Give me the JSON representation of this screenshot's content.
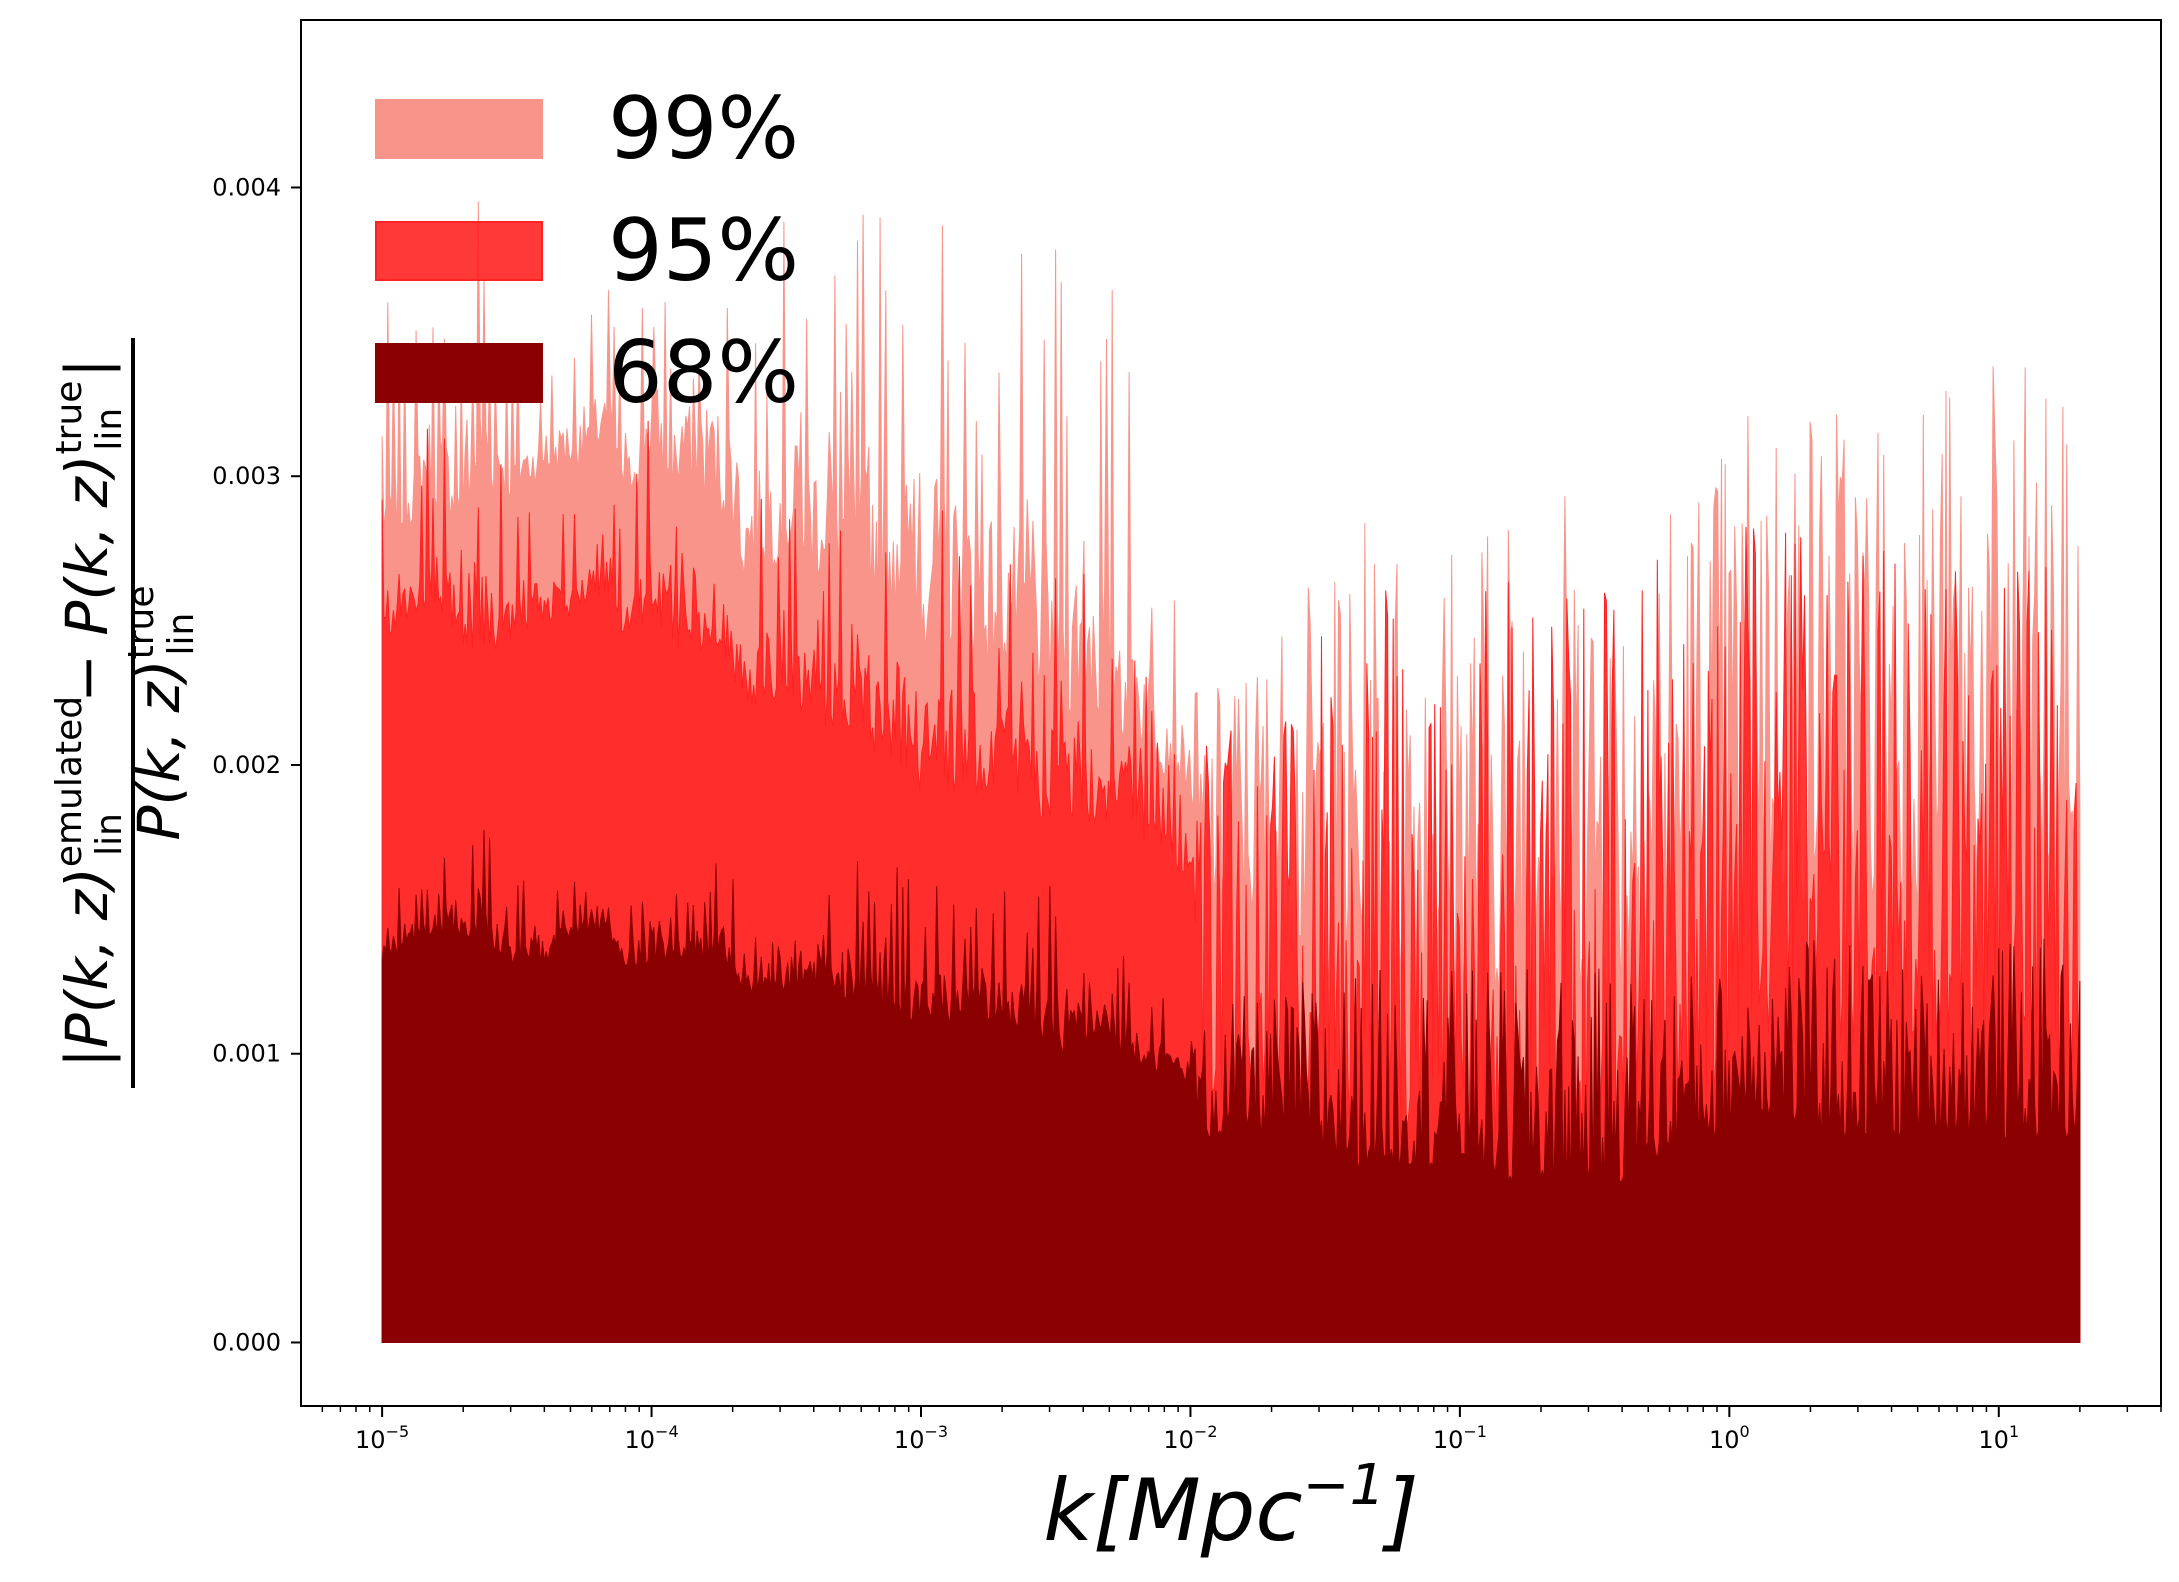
{
  "chart_data": {
    "type": "area",
    "x_scale": "log",
    "xlim": [
      5e-06,
      40
    ],
    "ylim": [
      -0.00022,
      0.00458
    ],
    "x_data_range": [
      1e-05,
      20
    ],
    "xlabel": {
      "base": "k[Mpc",
      "sup": "−1",
      "tail": "]"
    },
    "ylabel": {
      "numerator": {
        "left": "|P(k, z)",
        "sup1": "emulated",
        "sub1": "lin",
        "mid": " − P(k, z)",
        "sup2": "true",
        "sub2": "lin",
        "right": "|"
      },
      "denominator": {
        "left": "P(k, z)",
        "sup": "true",
        "sub": "lin"
      }
    },
    "x_ticks": [
      {
        "value": 1e-05,
        "base": "10",
        "exp": "−5"
      },
      {
        "value": 0.0001,
        "base": "10",
        "exp": "−4"
      },
      {
        "value": 0.001,
        "base": "10",
        "exp": "−3"
      },
      {
        "value": 0.01,
        "base": "10",
        "exp": "−2"
      },
      {
        "value": 0.1,
        "base": "10",
        "exp": "−1"
      },
      {
        "value": 1,
        "base": "10",
        "exp": "0"
      },
      {
        "value": 10,
        "base": "10",
        "exp": "1"
      }
    ],
    "y_ticks": [
      {
        "value": 0.0,
        "label": "0.000"
      },
      {
        "value": 0.001,
        "label": "0.001"
      },
      {
        "value": 0.002,
        "label": "0.002"
      },
      {
        "value": 0.003,
        "label": "0.003"
      },
      {
        "value": 0.004,
        "label": "0.004"
      }
    ],
    "legend": {
      "placement": "top-left"
    },
    "grid": false,
    "series": [
      {
        "name": "99%",
        "color": "#f8948a",
        "alpha": 1.0,
        "envelope": {
          "k": [
            1e-05,
            1.2e-05,
            1.5e-05,
            2e-05,
            2.3e-05,
            3e-05,
            4e-05,
            5e-05,
            7e-05,
            8e-05,
            0.0001,
            0.00012,
            0.00015,
            0.0002,
            0.00022,
            0.0003,
            0.0005,
            0.0008,
            0.001,
            0.002,
            0.003,
            0.005,
            0.01,
            0.011,
            0.015,
            0.02,
            0.03,
            0.05,
            0.1,
            0.2,
            0.3,
            0.5,
            1.0,
            1.2,
            2,
            3,
            5,
            10,
            15,
            20
          ],
          "peak": [
            0.0037,
            0.0034,
            0.0038,
            0.0036,
            0.00435,
            0.0035,
            0.0034,
            0.0036,
            0.0037,
            0.0033,
            0.0041,
            0.0037,
            0.004,
            0.004,
            0.0036,
            0.0039,
            0.004,
            0.004,
            0.0041,
            0.0039,
            0.0038,
            0.0038,
            0.0024,
            0.0022,
            0.0024,
            0.0025,
            0.0027,
            0.0029,
            0.0029,
            0.0031,
            0.003,
            0.0031,
            0.0032,
            0.0034,
            0.0034,
            0.0034,
            0.0034,
            0.0034,
            0.0034,
            0.0031
          ],
          "trough": [
            0.0027,
            0.0028,
            0.0029,
            0.0028,
            0.0029,
            0.0029,
            0.003,
            0.003,
            0.0031,
            0.0029,
            0.003,
            0.0029,
            0.0029,
            0.0028,
            0.0026,
            0.0027,
            0.0026,
            0.0025,
            0.0024,
            0.0023,
            0.0022,
            0.0021,
            0.0019,
            0.0015,
            0.0015,
            0.0014,
            0.0013,
            0.0012,
            0.0012,
            0.0012,
            0.0012,
            0.0012,
            0.0013,
            0.0016,
            0.0015,
            0.0015,
            0.0015,
            0.0015,
            0.0015,
            0.0014
          ]
        }
      },
      {
        "name": "95%",
        "color": "#ff2222",
        "alpha": 0.9,
        "envelope": {
          "k": [
            1e-05,
            1.2e-05,
            1.5e-05,
            2e-05,
            2.3e-05,
            3e-05,
            4e-05,
            5e-05,
            7e-05,
            8e-05,
            0.0001,
            0.00012,
            0.00015,
            0.0002,
            0.00022,
            0.0003,
            0.0005,
            0.0008,
            0.001,
            0.002,
            0.003,
            0.005,
            0.01,
            0.011,
            0.015,
            0.02,
            0.03,
            0.05,
            0.1,
            0.2,
            0.3,
            0.5,
            1.0,
            1.2,
            2,
            3,
            5,
            10,
            15,
            20
          ],
          "peak": [
            0.003,
            0.0028,
            0.0032,
            0.0031,
            0.0034,
            0.0029,
            0.003,
            0.0029,
            0.003,
            0.0028,
            0.0033,
            0.003,
            0.0032,
            0.0032,
            0.0029,
            0.003,
            0.003,
            0.0031,
            0.003,
            0.0029,
            0.0028,
            0.0027,
            0.0019,
            0.0021,
            0.0022,
            0.0023,
            0.0025,
            0.0026,
            0.0027,
            0.0027,
            0.0027,
            0.0028,
            0.0028,
            0.0029,
            0.0028,
            0.0028,
            0.0028,
            0.0027,
            0.0027,
            0.0024
          ],
          "trough": [
            0.0024,
            0.0025,
            0.0025,
            0.0024,
            0.0024,
            0.0024,
            0.0025,
            0.0025,
            0.0026,
            0.0024,
            0.0025,
            0.0024,
            0.0024,
            0.0023,
            0.0022,
            0.0022,
            0.0021,
            0.002,
            0.0019,
            0.0019,
            0.0018,
            0.0018,
            0.0016,
            0.0009,
            0.0008,
            0.0008,
            0.0007,
            0.0007,
            0.0007,
            0.0006,
            0.0006,
            0.0007,
            0.0008,
            0.0011,
            0.001,
            0.001,
            0.001,
            0.001,
            0.0009,
            0.0009
          ]
        }
      },
      {
        "name": "68%",
        "color": "#8b0000",
        "alpha": 1.0,
        "envelope": {
          "k": [
            1e-05,
            1.2e-05,
            1.5e-05,
            2e-05,
            2.3e-05,
            3e-05,
            4e-05,
            5e-05,
            7e-05,
            8e-05,
            0.0001,
            0.00012,
            0.00015,
            0.0002,
            0.00022,
            0.0003,
            0.0005,
            0.0008,
            0.001,
            0.002,
            0.003,
            0.005,
            0.01,
            0.011,
            0.015,
            0.02,
            0.03,
            0.05,
            0.1,
            0.2,
            0.3,
            0.5,
            1.0,
            1.2,
            2,
            3,
            5,
            10,
            15,
            20
          ],
          "peak": [
            0.0016,
            0.0016,
            0.0018,
            0.0017,
            0.0019,
            0.0017,
            0.0016,
            0.0016,
            0.0016,
            0.0015,
            0.0018,
            0.0016,
            0.0017,
            0.0017,
            0.0014,
            0.0016,
            0.0017,
            0.0017,
            0.0016,
            0.0016,
            0.0016,
            0.0015,
            0.0011,
            0.0011,
            0.0012,
            0.0012,
            0.0013,
            0.0013,
            0.0013,
            0.0013,
            0.0013,
            0.0013,
            0.0013,
            0.0014,
            0.0014,
            0.0014,
            0.0013,
            0.0014,
            0.0014,
            0.0013
          ],
          "trough": [
            0.0013,
            0.0013,
            0.0014,
            0.0014,
            0.0014,
            0.0013,
            0.0013,
            0.0014,
            0.0014,
            0.0013,
            0.0013,
            0.0013,
            0.0013,
            0.0013,
            0.0012,
            0.0012,
            0.0012,
            0.0011,
            0.0011,
            0.0011,
            0.001,
            0.001,
            0.0009,
            0.0007,
            0.0007,
            0.0007,
            0.0006,
            0.0006,
            0.0006,
            0.0005,
            0.0005,
            0.0006,
            0.0007,
            0.0008,
            0.0007,
            0.0007,
            0.0007,
            0.0007,
            0.0007,
            0.0007
          ]
        }
      }
    ]
  }
}
